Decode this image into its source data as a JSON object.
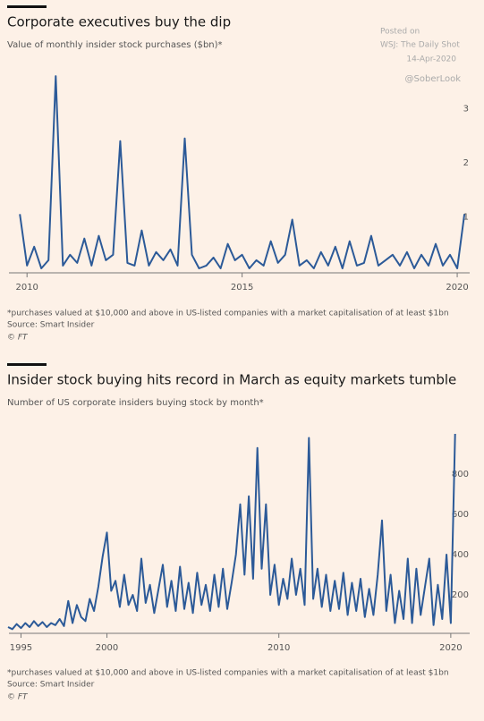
{
  "chart_data": [
    {
      "type": "line",
      "title": "Corporate executives buy the dip",
      "subtitle": "Value of monthly insider stock purchases ($bn)*",
      "footnote": "*purchases valued at $10,000 and above in US-listed companies with a market capitalisation of at least $1bn",
      "source": "Source: Smart Insider",
      "credit": "© FT",
      "annotations": [
        "Posted on",
        "WSJ: The Daily Shot",
        "14-Apr-2020",
        "@SoberLook"
      ],
      "color": "#2c5a98",
      "x": [
        2009.833,
        2010,
        2010.167,
        2010.333,
        2010.5,
        2010.667,
        2010.833,
        2011,
        2011.167,
        2011.333,
        2011.5,
        2011.667,
        2011.833,
        2012,
        2012.167,
        2012.333,
        2012.5,
        2012.667,
        2012.833,
        2013,
        2013.167,
        2013.333,
        2013.5,
        2013.667,
        2013.833,
        2014,
        2014.167,
        2014.333,
        2014.5,
        2014.667,
        2014.833,
        2015,
        2015.167,
        2015.333,
        2015.5,
        2015.667,
        2015.833,
        2016,
        2016.167,
        2016.333,
        2016.5,
        2016.667,
        2016.833,
        2017,
        2017.167,
        2017.333,
        2017.5,
        2017.667,
        2017.833,
        2018,
        2018.167,
        2018.333,
        2018.5,
        2018.667,
        2018.833,
        2019,
        2019.167,
        2019.333,
        2019.5,
        2019.667,
        2019.833,
        2020,
        2020.167
      ],
      "values": [
        1.05,
        0.1,
        0.45,
        0.05,
        0.2,
        3.6,
        0.1,
        0.3,
        0.15,
        0.6,
        0.1,
        0.65,
        0.2,
        0.3,
        2.4,
        0.15,
        0.1,
        0.75,
        0.1,
        0.35,
        0.2,
        0.4,
        0.1,
        2.45,
        0.3,
        0.05,
        0.1,
        0.25,
        0.05,
        0.5,
        0.2,
        0.3,
        0.05,
        0.2,
        0.1,
        0.55,
        0.15,
        0.3,
        0.95,
        0.1,
        0.2,
        0.05,
        0.35,
        0.1,
        0.45,
        0.05,
        0.55,
        0.1,
        0.15,
        0.65,
        0.1,
        0.2,
        0.3,
        0.1,
        0.35,
        0.05,
        0.3,
        0.1,
        0.5,
        0.1,
        0.3,
        0.05,
        1.05
      ],
      "xlim": [
        2009.58,
        2020.29
      ],
      "xticks": [
        2010,
        2015,
        2020
      ],
      "ylim": [
        0,
        3.7
      ],
      "yticks": [
        1,
        2,
        3
      ]
    },
    {
      "type": "line",
      "title": "Insider stock buying hits record in March as equity markets tumble",
      "subtitle": "Number of US corporate insiders buying stock by month*",
      "footnote": "*purchases valued at $10,000 and above in US-listed companies with a market capitalisation of at least $1bn",
      "source": "Source: Smart Insider",
      "credit": "© FT",
      "color": "#2c5a98",
      "x": [
        1994.25,
        1994.5,
        1994.75,
        1995,
        1995.25,
        1995.5,
        1995.75,
        1996,
        1996.25,
        1996.5,
        1996.75,
        1997,
        1997.25,
        1997.5,
        1997.75,
        1998,
        1998.25,
        1998.5,
        1998.75,
        1999,
        1999.25,
        1999.5,
        1999.75,
        2000,
        2000.25,
        2000.5,
        2000.75,
        2001,
        2001.25,
        2001.5,
        2001.75,
        2002,
        2002.25,
        2002.5,
        2002.75,
        2003,
        2003.25,
        2003.5,
        2003.75,
        2004,
        2004.25,
        2004.5,
        2004.75,
        2005,
        2005.25,
        2005.5,
        2005.75,
        2006,
        2006.25,
        2006.5,
        2006.75,
        2007,
        2007.25,
        2007.5,
        2007.75,
        2008,
        2008.25,
        2008.5,
        2008.75,
        2009,
        2009.25,
        2009.5,
        2009.75,
        2010,
        2010.25,
        2010.5,
        2010.75,
        2011,
        2011.25,
        2011.5,
        2011.75,
        2012,
        2012.25,
        2012.5,
        2012.75,
        2013,
        2013.25,
        2013.5,
        2013.75,
        2014,
        2014.25,
        2014.5,
        2014.75,
        2015,
        2015.25,
        2015.5,
        2015.75,
        2016,
        2016.25,
        2016.5,
        2016.75,
        2017,
        2017.25,
        2017.5,
        2017.75,
        2018,
        2018.25,
        2018.5,
        2018.75,
        2019,
        2019.25,
        2019.5,
        2019.75,
        2020,
        2020.25
      ],
      "values": [
        40,
        30,
        55,
        35,
        60,
        40,
        70,
        45,
        65,
        40,
        60,
        50,
        80,
        45,
        170,
        60,
        150,
        90,
        70,
        180,
        120,
        240,
        390,
        510,
        220,
        270,
        140,
        300,
        150,
        200,
        120,
        380,
        160,
        250,
        110,
        230,
        350,
        140,
        270,
        120,
        340,
        130,
        260,
        110,
        310,
        150,
        250,
        120,
        300,
        140,
        330,
        130,
        260,
        400,
        650,
        300,
        690,
        280,
        930,
        330,
        650,
        200,
        350,
        150,
        280,
        180,
        380,
        200,
        330,
        150,
        980,
        180,
        330,
        140,
        300,
        120,
        270,
        130,
        310,
        100,
        260,
        120,
        280,
        90,
        230,
        100,
        300,
        570,
        120,
        300,
        60,
        220,
        80,
        380,
        60,
        330,
        100,
        240,
        380,
        50,
        250,
        80,
        400,
        60,
        1000
      ],
      "xlim": [
        1994.3,
        2021.1
      ],
      "xticks": [
        1995,
        2000,
        2010,
        2020
      ],
      "ylim": [
        0,
        1000
      ],
      "yticks": [
        200,
        400,
        600,
        800
      ]
    }
  ]
}
